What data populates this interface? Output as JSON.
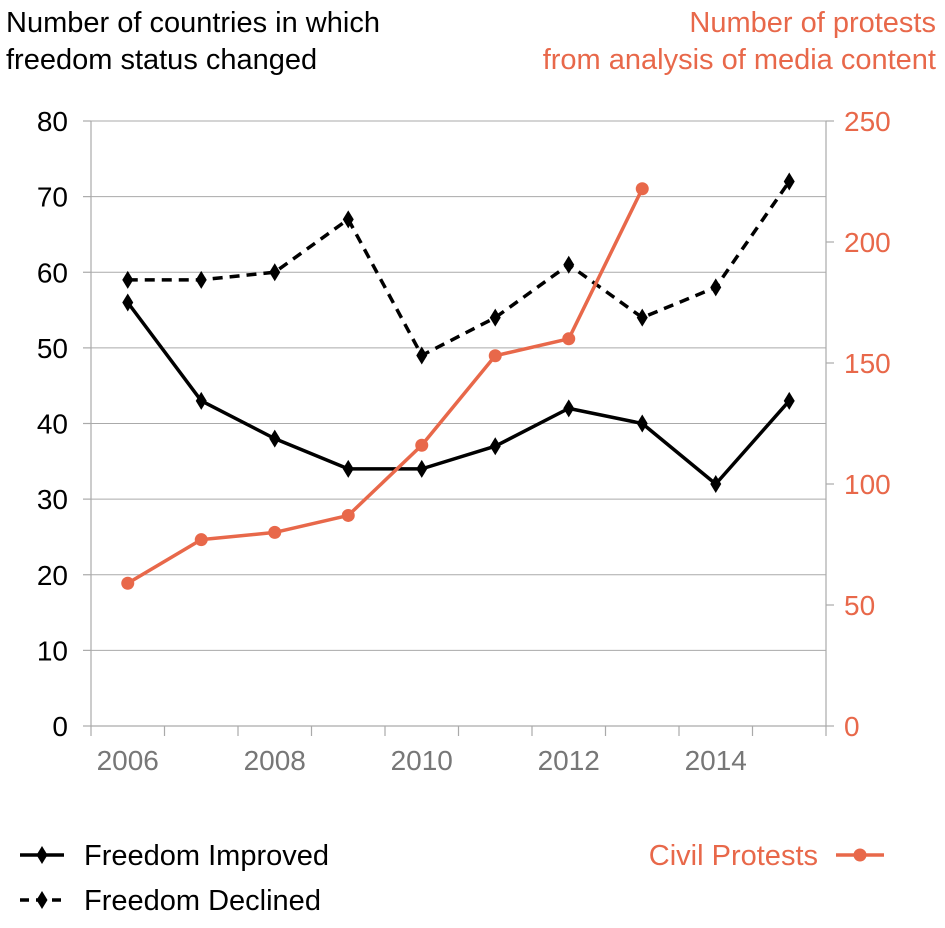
{
  "chart_data": {
    "type": "line",
    "left_axis": {
      "title_lines": [
        "Number of countries in which",
        "freedom status changed"
      ],
      "ylim": [
        0,
        80
      ],
      "ticks": [
        0,
        10,
        20,
        30,
        40,
        50,
        60,
        70,
        80
      ]
    },
    "right_axis": {
      "title_lines": [
        "Number of protests",
        "from analysis of media content"
      ],
      "ylim": [
        0,
        250
      ],
      "ticks": [
        0,
        50,
        100,
        150,
        200,
        250
      ]
    },
    "x_axis": {
      "xlim": [
        2005.5,
        2015.5
      ],
      "ticks": [
        2006,
        2008,
        2010,
        2012,
        2014
      ]
    },
    "grid": true,
    "series": [
      {
        "name": "Freedom Improved",
        "axis": "left",
        "style": "solid",
        "marker": "diamond",
        "color": "#000000",
        "x": [
          2006,
          2007,
          2008,
          2009,
          2010,
          2011,
          2012,
          2013,
          2014,
          2015
        ],
        "values": [
          56,
          43,
          38,
          34,
          34,
          37,
          42,
          40,
          32,
          43
        ]
      },
      {
        "name": "Freedom Declined",
        "axis": "left",
        "style": "dashed",
        "marker": "diamond",
        "color": "#000000",
        "x": [
          2006,
          2007,
          2008,
          2009,
          2010,
          2011,
          2012,
          2013,
          2014,
          2015
        ],
        "values": [
          59,
          59,
          60,
          67,
          49,
          54,
          61,
          54,
          58,
          72
        ]
      },
      {
        "name": "Civil Protests",
        "axis": "right",
        "style": "solid",
        "marker": "circle",
        "color": "#E8684A",
        "x": [
          2006,
          2007,
          2008,
          2009,
          2010,
          2011,
          2012,
          2013
        ],
        "values": [
          59,
          77,
          80,
          87,
          116,
          153,
          160,
          222
        ]
      }
    ],
    "legend": {
      "left": [
        "Freedom Improved",
        "Freedom Declined"
      ],
      "right": [
        "Civil Protests"
      ],
      "placement": "bottom"
    }
  },
  "colors": {
    "text": "#000000",
    "accent": "#E8684A",
    "tick_x": "#777777",
    "grid": "#aaaaaa"
  }
}
